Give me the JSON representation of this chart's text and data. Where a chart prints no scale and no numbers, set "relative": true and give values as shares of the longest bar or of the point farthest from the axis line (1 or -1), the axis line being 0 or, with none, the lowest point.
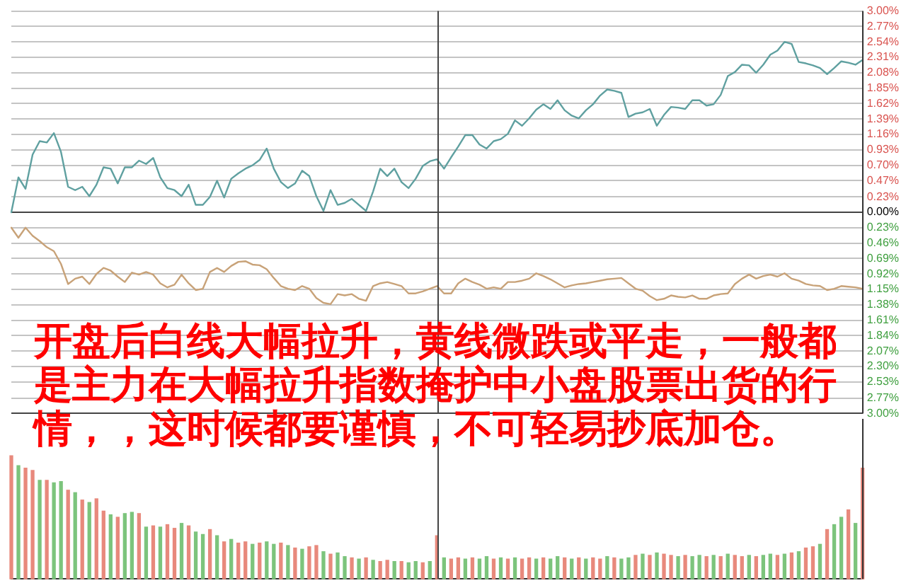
{
  "chart_data": [
    {
      "type": "line",
      "categories": [
        null,
        null,
        null,
        null,
        null,
        null,
        null,
        null,
        null,
        null,
        null,
        null,
        null,
        null,
        null,
        null,
        null,
        null,
        null,
        null,
        null,
        null,
        null,
        null,
        null,
        null,
        null,
        null,
        null,
        null,
        null,
        null,
        null,
        null,
        null,
        null,
        null,
        null,
        null,
        null,
        null,
        null,
        null,
        null,
        null,
        null,
        null,
        null,
        null,
        null,
        null,
        null,
        null,
        null,
        null,
        null,
        null,
        null,
        null,
        null,
        null,
        null,
        null,
        null,
        null,
        null,
        null,
        null,
        null,
        null,
        null,
        null,
        null,
        null,
        null,
        null,
        null,
        null,
        null,
        null,
        null,
        null,
        null,
        null,
        null,
        null,
        null,
        null,
        null,
        null,
        null,
        null,
        null,
        null,
        null,
        null,
        null,
        null,
        null,
        null,
        null,
        null,
        null,
        null,
        null,
        null,
        null,
        null,
        null,
        null,
        null,
        null,
        null,
        null,
        null,
        null,
        null,
        null,
        null,
        null,
        null
      ],
      "ylim": [
        -3,
        3
      ],
      "yticks": [
        {
          "value": -3,
          "label": "3.00%"
        },
        {
          "value": -2.77,
          "label": "2.77%"
        },
        {
          "value": -2.53,
          "label": "2.53%"
        },
        {
          "value": -2.3,
          "label": "2.30%"
        },
        {
          "value": -2.07,
          "label": "2.07%"
        },
        {
          "value": -1.84,
          "label": "1.84%"
        },
        {
          "value": -1.61,
          "label": "1.61%"
        },
        {
          "value": -1.38,
          "label": "1.38%"
        },
        {
          "value": -1.15,
          "label": "1.15%"
        },
        {
          "value": -0.92,
          "label": "0.92%"
        },
        {
          "value": -0.69,
          "label": "0.69%"
        },
        {
          "value": -0.46,
          "label": "0.46%"
        },
        {
          "value": -0.23,
          "label": "0.23%"
        },
        {
          "value": 0,
          "label": "0.00%"
        },
        {
          "value": 0.23,
          "label": "0.23%"
        },
        {
          "value": 0.47,
          "label": "0.47%"
        },
        {
          "value": 0.7,
          "label": "0.70%"
        },
        {
          "value": 0.93,
          "label": "0.93%"
        },
        {
          "value": 1.16,
          "label": "1.16%"
        },
        {
          "value": 1.39,
          "label": "1.39%"
        },
        {
          "value": 1.62,
          "label": "1.62%"
        },
        {
          "value": 1.85,
          "label": "1.85%"
        },
        {
          "value": 2.08,
          "label": "2.08%"
        },
        {
          "value": 2.31,
          "label": "2.31%"
        },
        {
          "value": 2.54,
          "label": "2.54%"
        },
        {
          "value": 2.77,
          "label": "2.77%"
        },
        {
          "value": 3,
          "label": "3.00%"
        }
      ],
      "tick_labels": "y",
      "grid": "y",
      "marker": "none",
      "series": [
        {
          "color": "#5fa0a0",
          "values": [
            0.0,
            0.52,
            0.35,
            0.86,
            1.06,
            1.04,
            1.18,
            0.9,
            0.38,
            0.33,
            0.38,
            0.24,
            0.41,
            0.67,
            0.65,
            0.43,
            0.67,
            0.67,
            0.77,
            0.72,
            0.81,
            0.52,
            0.36,
            0.33,
            0.24,
            0.41,
            0.11,
            0.11,
            0.23,
            0.47,
            0.22,
            0.5,
            0.58,
            0.65,
            0.7,
            0.78,
            0.95,
            0.65,
            0.45,
            0.36,
            0.43,
            0.62,
            0.54,
            0.24,
            0.02,
            0.33,
            0.11,
            0.14,
            0.2,
            0.11,
            0.02,
            0.31,
            0.65,
            0.54,
            0.65,
            0.45,
            0.36,
            0.5,
            0.69,
            0.76,
            0.79,
            0.65,
            0.82,
            0.98,
            1.15,
            1.15,
            1.01,
            0.95,
            1.06,
            1.09,
            1.17,
            1.37,
            1.29,
            1.4,
            1.53,
            1.61,
            1.54,
            1.67,
            1.52,
            1.44,
            1.4,
            1.52,
            1.61,
            1.74,
            1.83,
            1.81,
            1.78,
            1.42,
            1.47,
            1.49,
            1.54,
            1.29,
            1.45,
            1.57,
            1.56,
            1.54,
            1.67,
            1.67,
            1.59,
            1.61,
            1.75,
            2.03,
            2.09,
            2.2,
            2.19,
            2.08,
            2.2,
            2.35,
            2.41,
            2.54,
            2.51,
            2.24,
            2.22,
            2.19,
            2.15,
            2.06,
            2.15,
            2.25,
            2.23,
            2.2,
            2.27
          ]
        },
        {
          "color": "#c8a278",
          "values": [
            -0.23,
            -0.38,
            -0.23,
            -0.35,
            -0.43,
            -0.52,
            -0.58,
            -0.77,
            -1.07,
            -0.99,
            -0.96,
            -1.07,
            -0.92,
            -0.83,
            -0.87,
            -0.96,
            -1.04,
            -0.9,
            -0.93,
            -0.89,
            -0.93,
            -1.06,
            -1.12,
            -1.08,
            -0.93,
            -1.06,
            -1.16,
            -1.14,
            -0.89,
            -0.83,
            -0.89,
            -0.8,
            -0.74,
            -0.73,
            -0.78,
            -0.79,
            -0.85,
            -0.98,
            -1.1,
            -1.14,
            -1.16,
            -1.1,
            -1.14,
            -1.28,
            -1.35,
            -1.37,
            -1.22,
            -1.24,
            -1.22,
            -1.29,
            -1.32,
            -1.1,
            -1.06,
            -1.04,
            -1.07,
            -1.1,
            -1.21,
            -1.21,
            -1.18,
            -1.14,
            -1.1,
            -1.21,
            -1.21,
            -1.06,
            -0.99,
            -1.04,
            -1.08,
            -1.14,
            -1.12,
            -1.14,
            -1.04,
            -1.04,
            -1.02,
            -0.99,
            -0.91,
            -0.95,
            -1.0,
            -1.06,
            -1.12,
            -1.09,
            -1.07,
            -1.06,
            -1.04,
            -1.02,
            -1.0,
            -0.99,
            -0.98,
            -1.06,
            -1.14,
            -1.17,
            -1.25,
            -1.31,
            -1.29,
            -1.24,
            -1.26,
            -1.27,
            -1.24,
            -1.29,
            -1.29,
            -1.24,
            -1.22,
            -1.21,
            -1.07,
            -0.99,
            -0.93,
            -0.99,
            -0.95,
            -0.93,
            -0.96,
            -0.91,
            -0.99,
            -1.02,
            -1.07,
            -1.09,
            -1.1,
            -1.16,
            -1.14,
            -1.1,
            -1.11,
            -1.12,
            -1.14
          ]
        }
      ],
      "annotations": [
        "开盘后白线大幅拉升，黄线微跌或平走，一般都是主力在大幅拉升指数掩护中小盘股票出货的行情，，这时候都要谨慎，不可轻易抄底加仓。"
      ]
    },
    {
      "type": "bar",
      "relative": true,
      "tick_labels": false,
      "categories": [
        null,
        null,
        null,
        null,
        null,
        null,
        null,
        null,
        null,
        null,
        null,
        null,
        null,
        null,
        null,
        null,
        null,
        null,
        null,
        null,
        null,
        null,
        null,
        null,
        null,
        null,
        null,
        null,
        null,
        null,
        null,
        null,
        null,
        null,
        null,
        null,
        null,
        null,
        null,
        null,
        null,
        null,
        null,
        null,
        null,
        null,
        null,
        null,
        null,
        null,
        null,
        null,
        null,
        null,
        null,
        null,
        null,
        null,
        null,
        null,
        null,
        null,
        null,
        null,
        null,
        null,
        null,
        null,
        null,
        null,
        null,
        null,
        null,
        null,
        null,
        null,
        null,
        null,
        null,
        null,
        null,
        null,
        null,
        null,
        null,
        null,
        null,
        null,
        null,
        null,
        null,
        null,
        null,
        null,
        null,
        null,
        null,
        null,
        null,
        null,
        null,
        null,
        null,
        null,
        null,
        null,
        null,
        null,
        null,
        null,
        null,
        null,
        null,
        null,
        null,
        null,
        null,
        null,
        null,
        null,
        null
      ],
      "values": [
        1.0,
        0.92,
        0.9,
        0.88,
        0.8,
        0.8,
        0.78,
        0.79,
        0.72,
        0.7,
        0.64,
        0.62,
        0.65,
        0.55,
        0.52,
        0.5,
        0.53,
        0.54,
        0.53,
        0.42,
        0.43,
        0.42,
        0.44,
        0.41,
        0.45,
        0.43,
        0.38,
        0.36,
        0.4,
        0.35,
        0.3,
        0.32,
        0.29,
        0.3,
        0.28,
        0.29,
        0.3,
        0.28,
        0.29,
        0.27,
        0.25,
        0.24,
        0.26,
        0.27,
        0.22,
        0.2,
        0.21,
        0.18,
        0.17,
        0.16,
        0.17,
        0.15,
        0.14,
        0.15,
        0.14,
        0.14,
        0.13,
        0.14,
        0.13,
        0.14,
        0.35,
        0.17,
        0.16,
        0.17,
        0.16,
        0.17,
        0.16,
        0.18,
        0.16,
        0.17,
        0.16,
        0.17,
        0.16,
        0.17,
        0.16,
        0.17,
        0.16,
        0.18,
        0.17,
        0.16,
        0.17,
        0.16,
        0.17,
        0.16,
        0.18,
        0.17,
        0.16,
        0.17,
        0.19,
        0.2,
        0.19,
        0.21,
        0.2,
        0.19,
        0.18,
        0.19,
        0.18,
        0.19,
        0.18,
        0.19,
        0.18,
        0.2,
        0.19,
        0.18,
        0.19,
        0.18,
        0.19,
        0.2,
        0.19,
        0.2,
        0.21,
        0.22,
        0.25,
        0.26,
        0.28,
        0.4,
        0.44,
        0.5,
        0.56,
        0.45,
        0.9
      ],
      "colors": [
        "#e8897c",
        "#7cc47c",
        "#e8897c",
        "#e8897c",
        "#7cc47c",
        "#e8897c",
        "#7cc47c",
        "#7cc47c",
        "#e8897c",
        "#7cc47c",
        "#e8897c",
        "#7cc47c",
        "#e8897c",
        "#e8897c",
        "#7cc47c",
        "#e8897c",
        "#7cc47c",
        "#7cc47c",
        "#e8897c",
        "#7cc47c",
        "#e8897c",
        "#7cc47c",
        "#e8897c",
        "#e8897c",
        "#7cc47c",
        "#e8897c",
        "#7cc47c",
        "#7cc47c",
        "#e8897c",
        "#7cc47c",
        "#e8897c",
        "#7cc47c",
        "#e8897c",
        "#e8897c",
        "#7cc47c",
        "#e8897c",
        "#7cc47c",
        "#7cc47c",
        "#e8897c",
        "#7cc47c",
        "#e8897c",
        "#7cc47c",
        "#e8897c",
        "#e8897c",
        "#7cc47c",
        "#e8897c",
        "#7cc47c",
        "#7cc47c",
        "#e8897c",
        "#7cc47c",
        "#e8897c",
        "#7cc47c",
        "#e8897c",
        "#e8897c",
        "#7cc47c",
        "#e8897c",
        "#7cc47c",
        "#7cc47c",
        "#e8897c",
        "#7cc47c",
        "#e8897c",
        "#7cc47c",
        "#e8897c",
        "#e8897c",
        "#7cc47c",
        "#e8897c",
        "#7cc47c",
        "#7cc47c",
        "#e8897c",
        "#7cc47c",
        "#e8897c",
        "#7cc47c",
        "#e8897c",
        "#e8897c",
        "#7cc47c",
        "#e8897c",
        "#7cc47c",
        "#7cc47c",
        "#e8897c",
        "#7cc47c",
        "#e8897c",
        "#7cc47c",
        "#e8897c",
        "#e8897c",
        "#7cc47c",
        "#e8897c",
        "#7cc47c",
        "#7cc47c",
        "#e8897c",
        "#7cc47c",
        "#e8897c",
        "#7cc47c",
        "#e8897c",
        "#e8897c",
        "#7cc47c",
        "#e8897c",
        "#7cc47c",
        "#7cc47c",
        "#e8897c",
        "#7cc47c",
        "#e8897c",
        "#7cc47c",
        "#e8897c",
        "#e8897c",
        "#7cc47c",
        "#e8897c",
        "#7cc47c",
        "#7cc47c",
        "#e8897c",
        "#7cc47c",
        "#e8897c",
        "#7cc47c",
        "#e8897c",
        "#e8897c",
        "#7cc47c",
        "#e8897c",
        "#7cc47c",
        "#7cc47c",
        "#e8897c",
        "#7cc47c",
        "#e8897c"
      ]
    }
  ]
}
